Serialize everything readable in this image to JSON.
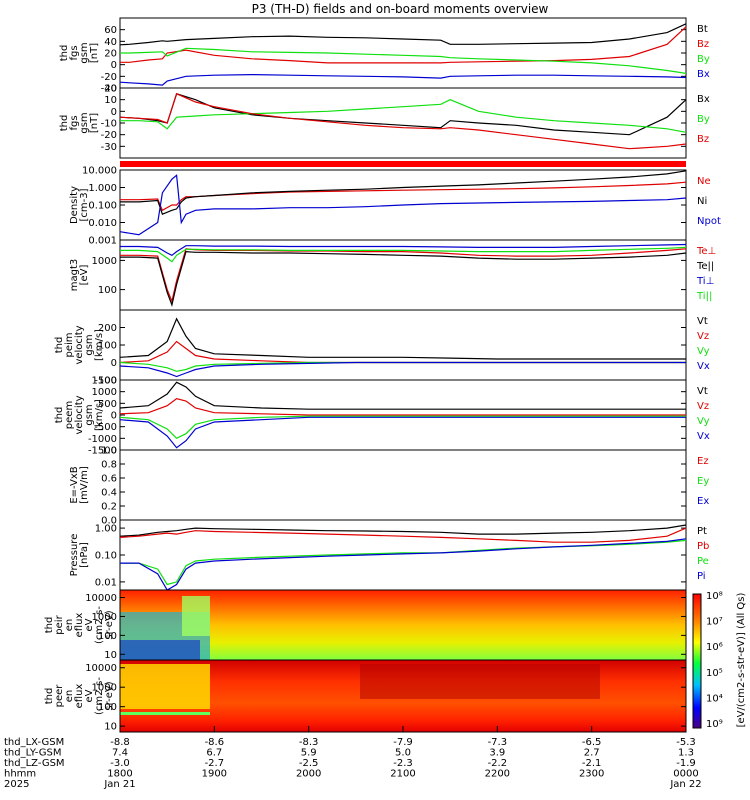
{
  "title": "P3 (TH-D) fields and on-board moments overview",
  "colors": {
    "black": "#000000",
    "red": "#e00000",
    "green": "#10e010",
    "blue": "#0000d0"
  },
  "chart_data": [
    {
      "id": "fgs_gsm",
      "type": "line",
      "ylabel": [
        "thd",
        "fgs",
        "gsm",
        "[nT]"
      ],
      "ylim": [
        -40,
        80
      ],
      "yticks": [
        "-40",
        "-20",
        "0",
        "20",
        "40",
        "60"
      ],
      "yticks_values": [
        -40,
        -20,
        0,
        20,
        40,
        60
      ],
      "x": [
        18.0,
        18.1,
        18.3,
        18.45,
        18.5,
        18.7,
        19.0,
        19.4,
        19.8,
        20.2,
        20.6,
        21.0,
        21.4,
        21.5,
        21.8,
        22.2,
        22.6,
        23.0,
        23.4,
        23.8,
        24.0
      ],
      "series": [
        {
          "name": "Bt",
          "color": "#000000",
          "values": [
            34,
            35,
            38,
            41,
            40,
            43,
            45,
            48,
            49,
            47,
            46,
            44,
            42,
            35,
            35,
            36,
            37,
            38,
            44,
            55,
            70
          ]
        },
        {
          "name": "Bz",
          "color": "#e00000",
          "values": [
            4,
            4,
            8,
            10,
            20,
            25,
            16,
            10,
            7,
            3,
            3,
            3,
            3,
            4,
            5,
            6,
            7,
            9,
            14,
            35,
            65
          ]
        },
        {
          "name": "By",
          "color": "#10e010",
          "values": [
            20,
            20,
            21,
            22,
            15,
            28,
            26,
            22,
            21,
            20,
            18,
            16,
            14,
            12,
            10,
            8,
            6,
            3,
            -2,
            -10,
            -15
          ]
        },
        {
          "name": "Bx",
          "color": "#0000d0",
          "values": [
            -30,
            -31,
            -33,
            -35,
            -28,
            -20,
            -18,
            -17,
            -18,
            -19,
            -20,
            -21,
            -23,
            -20,
            -19,
            -18,
            -18,
            -19,
            -20,
            -21,
            -22
          ]
        }
      ]
    },
    {
      "id": "fgs_gse",
      "type": "line",
      "ylabel": [
        "thd",
        "fgs",
        "gsm",
        "[nT]"
      ],
      "ylim": [
        -40,
        20
      ],
      "yticks": [
        "-30",
        "-20",
        "-10",
        "0",
        "10",
        "20"
      ],
      "yticks_values": [
        -30,
        -20,
        -10,
        0,
        10,
        20
      ],
      "x": [
        18.0,
        18.2,
        18.4,
        18.5,
        18.6,
        18.8,
        19.0,
        19.4,
        19.8,
        20.2,
        20.6,
        21.0,
        21.4,
        21.5,
        21.8,
        22.2,
        22.6,
        23.0,
        23.4,
        23.8,
        24.0
      ],
      "series": [
        {
          "name": "Bx",
          "color": "#000000",
          "values": [
            -5,
            -6,
            -8,
            -10,
            15,
            10,
            3,
            -3,
            -6,
            -8,
            -10,
            -12,
            -14,
            -8,
            -10,
            -12,
            -16,
            -18,
            -20,
            -5,
            10
          ]
        },
        {
          "name": "By",
          "color": "#10e010",
          "values": [
            -8,
            -8,
            -9,
            -15,
            -5,
            -4,
            -3,
            -2,
            -1,
            0,
            2,
            4,
            6,
            10,
            0,
            -5,
            -8,
            -10,
            -12,
            -15,
            -18
          ]
        },
        {
          "name": "Bz",
          "color": "#e00000",
          "values": [
            -5,
            -6,
            -7,
            -10,
            15,
            8,
            4,
            -2,
            -6,
            -9,
            -12,
            -14,
            -15,
            -14,
            -16,
            -20,
            -24,
            -28,
            -32,
            -30,
            -28
          ]
        }
      ]
    },
    {
      "id": "density",
      "type": "line",
      "yscale": "log",
      "ylabel": [
        "Density",
        "[cm-3]"
      ],
      "ylim": [
        0.001,
        10
      ],
      "yticks": [
        "0.001",
        "0.010",
        "0.100",
        "1.000",
        "10.000"
      ],
      "yticks_values": [
        0.001,
        0.01,
        0.1,
        1,
        10
      ],
      "x": [
        18.0,
        18.2,
        18.4,
        18.45,
        18.55,
        18.6,
        18.65,
        18.7,
        18.8,
        19.0,
        19.4,
        19.8,
        20.2,
        20.6,
        21.0,
        21.4,
        21.8,
        22.2,
        22.6,
        23.0,
        23.4,
        23.8,
        24.0
      ],
      "series": [
        {
          "name": "Ne",
          "color": "#e00000",
          "values": [
            0.2,
            0.2,
            0.22,
            0.05,
            0.1,
            0.1,
            0.2,
            0.3,
            0.3,
            0.35,
            0.45,
            0.55,
            0.6,
            0.65,
            0.7,
            0.75,
            0.8,
            0.85,
            0.95,
            1.1,
            1.3,
            1.6,
            2.0
          ]
        },
        {
          "name": "Ni",
          "color": "#000000",
          "values": [
            0.15,
            0.15,
            0.18,
            0.03,
            0.05,
            0.06,
            0.15,
            0.25,
            0.3,
            0.35,
            0.5,
            0.6,
            0.7,
            0.8,
            1.0,
            1.2,
            1.4,
            1.8,
            2.3,
            3.0,
            4.0,
            6.0,
            9.0
          ]
        },
        {
          "name": "Npot",
          "color": "#0000d0",
          "values": [
            0.003,
            0.002,
            0.01,
            0.5,
            3.0,
            5.0,
            0.01,
            0.03,
            0.05,
            0.06,
            0.06,
            0.07,
            0.07,
            0.08,
            0.1,
            0.12,
            0.13,
            0.14,
            0.15,
            0.16,
            0.18,
            0.2,
            0.25
          ]
        }
      ]
    },
    {
      "id": "temperature",
      "type": "line",
      "yscale": "log",
      "ylabel": [
        "magt3",
        "[eV]"
      ],
      "ylim": [
        20,
        5000
      ],
      "yticks": [
        "100",
        "1000"
      ],
      "yticks_values": [
        100,
        1000
      ],
      "x": [
        18.0,
        18.2,
        18.4,
        18.5,
        18.55,
        18.6,
        18.7,
        18.8,
        19.0,
        19.4,
        19.8,
        20.2,
        20.6,
        21.0,
        21.4,
        21.8,
        22.2,
        22.6,
        23.0,
        23.4,
        23.8,
        24.0
      ],
      "series": [
        {
          "name": "Te⊥",
          "color": "#e00000",
          "values": [
            1500,
            1500,
            1400,
            100,
            40,
            200,
            2500,
            2300,
            2200,
            2200,
            2100,
            2100,
            2000,
            2000,
            1800,
            1500,
            1400,
            1400,
            1500,
            1800,
            2200,
            2500
          ]
        },
        {
          "name": "Te||",
          "color": "#000000",
          "values": [
            1300,
            1300,
            1200,
            80,
            30,
            150,
            2000,
            1900,
            1900,
            1800,
            1800,
            1700,
            1600,
            1500,
            1400,
            1200,
            1100,
            1100,
            1200,
            1300,
            1500,
            1800
          ]
        },
        {
          "name": "Ti⊥",
          "color": "#0000d0",
          "values": [
            3000,
            3000,
            2800,
            1800,
            1500,
            2000,
            3200,
            3200,
            3100,
            3100,
            3000,
            3000,
            3000,
            3000,
            2900,
            2800,
            2800,
            2800,
            3000,
            3200,
            3400,
            3500
          ]
        },
        {
          "name": "Ti||",
          "color": "#10e010",
          "values": [
            2200,
            2200,
            2000,
            1200,
            900,
            1500,
            2400,
            2400,
            2300,
            2300,
            2200,
            2200,
            2200,
            2200,
            2100,
            2000,
            2000,
            2000,
            2200,
            2400,
            2600,
            2800
          ]
        }
      ]
    },
    {
      "id": "peim_velocity",
      "type": "line",
      "ylabel": [
        "thd",
        "peim",
        "velocity",
        "gsm",
        "[km/s]"
      ],
      "ylim": [
        -100,
        300
      ],
      "yticks": [
        "-100",
        "0",
        "100",
        "200"
      ],
      "yticks_values": [
        -100,
        0,
        100,
        200
      ],
      "x": [
        18.0,
        18.3,
        18.5,
        18.6,
        18.7,
        18.8,
        19.0,
        19.5,
        20.0,
        20.5,
        21.0,
        21.5,
        22.0,
        22.5,
        23.0,
        23.5,
        24.0
      ],
      "series": [
        {
          "name": "Vt",
          "color": "#000000",
          "values": [
            30,
            40,
            120,
            250,
            150,
            80,
            50,
            40,
            30,
            30,
            30,
            25,
            20,
            20,
            20,
            20,
            20
          ]
        },
        {
          "name": "Vz",
          "color": "#e00000",
          "values": [
            0,
            10,
            60,
            120,
            80,
            40,
            20,
            10,
            0,
            0,
            0,
            0,
            0,
            0,
            0,
            0,
            0
          ]
        },
        {
          "name": "Vy",
          "color": "#10e010",
          "values": [
            0,
            -10,
            -30,
            -50,
            -40,
            -20,
            -10,
            -5,
            0,
            0,
            0,
            0,
            0,
            0,
            0,
            0,
            0
          ]
        },
        {
          "name": "Vx",
          "color": "#0000d0",
          "values": [
            -20,
            -30,
            -60,
            -80,
            -60,
            -40,
            -20,
            -10,
            -5,
            0,
            0,
            0,
            0,
            0,
            0,
            0,
            0
          ]
        }
      ]
    },
    {
      "id": "peem_velocity",
      "type": "line",
      "ylabel": [
        "thd",
        "peem",
        "velocity",
        "gsm",
        "[km/s]"
      ],
      "ylim": [
        -1500,
        1500
      ],
      "yticks": [
        "-1500",
        "-1000",
        "-500",
        "0",
        "500",
        "1000",
        "1500"
      ],
      "yticks_values": [
        -1500,
        -1000,
        -500,
        0,
        500,
        1000,
        1500
      ],
      "x": [
        18.0,
        18.3,
        18.5,
        18.6,
        18.7,
        18.8,
        19.0,
        19.5,
        20.0,
        20.5,
        21.0,
        21.5,
        22.0,
        22.5,
        23.0,
        23.5,
        24.0
      ],
      "series": [
        {
          "name": "Vt",
          "color": "#000000",
          "values": [
            300,
            400,
            900,
            1400,
            1200,
            800,
            400,
            300,
            250,
            250,
            250,
            250,
            250,
            250,
            250,
            250,
            250
          ]
        },
        {
          "name": "Vz",
          "color": "#e00000",
          "values": [
            50,
            100,
            400,
            700,
            600,
            300,
            100,
            50,
            0,
            0,
            0,
            0,
            0,
            0,
            0,
            0,
            0
          ]
        },
        {
          "name": "Vy",
          "color": "#10e010",
          "values": [
            -100,
            -200,
            -600,
            -1000,
            -800,
            -400,
            -200,
            -100,
            -50,
            -50,
            -50,
            -50,
            -50,
            -50,
            -50,
            -50,
            -50
          ]
        },
        {
          "name": "Vx",
          "color": "#0000d0",
          "values": [
            -200,
            -300,
            -900,
            -1400,
            -1100,
            -600,
            -300,
            -200,
            -100,
            -100,
            -100,
            -100,
            -100,
            -100,
            -100,
            -100,
            -100
          ]
        }
      ]
    },
    {
      "id": "efield",
      "type": "line",
      "ylabel": [
        "E=-VxB",
        "[mV/m]"
      ],
      "ylim": [
        0,
        1
      ],
      "yticks": [
        "0.0",
        "0.2",
        "0.4",
        "0.6",
        "0.8",
        "1.0"
      ],
      "yticks_values": [
        0,
        0.2,
        0.4,
        0.6,
        0.8,
        1.0
      ],
      "x": [],
      "series": [
        {
          "name": "Ez",
          "color": "#e00000",
          "values": []
        },
        {
          "name": "Ey",
          "color": "#10e010",
          "values": []
        },
        {
          "name": "Ex",
          "color": "#0000d0",
          "values": []
        }
      ]
    },
    {
      "id": "pressure",
      "type": "line",
      "yscale": "log",
      "ylabel": [
        "Pressure",
        "[nPa]"
      ],
      "ylim": [
        0.005,
        2
      ],
      "yticks": [
        "0.01",
        "0.10",
        "1.00"
      ],
      "yticks_values": [
        0.01,
        0.1,
        1.0
      ],
      "x": [
        18.0,
        18.2,
        18.4,
        18.5,
        18.6,
        18.7,
        18.8,
        19.0,
        19.4,
        19.8,
        20.2,
        20.6,
        21.0,
        21.4,
        21.8,
        22.2,
        22.6,
        23.0,
        23.4,
        23.8,
        24.0
      ],
      "series": [
        {
          "name": "Pt",
          "color": "#000000",
          "values": [
            0.5,
            0.55,
            0.7,
            0.75,
            0.8,
            0.9,
            1.0,
            0.95,
            0.9,
            0.85,
            0.8,
            0.78,
            0.75,
            0.7,
            0.6,
            0.6,
            0.65,
            0.7,
            0.8,
            1.0,
            1.3
          ]
        },
        {
          "name": "Pb",
          "color": "#e00000",
          "values": [
            0.45,
            0.5,
            0.6,
            0.65,
            0.6,
            0.7,
            0.8,
            0.75,
            0.7,
            0.65,
            0.6,
            0.55,
            0.5,
            0.45,
            0.4,
            0.35,
            0.3,
            0.3,
            0.35,
            0.5,
            1.0
          ]
        },
        {
          "name": "Pe",
          "color": "#10e010",
          "values": [
            0.05,
            0.05,
            0.03,
            0.008,
            0.01,
            0.04,
            0.06,
            0.07,
            0.08,
            0.09,
            0.1,
            0.11,
            0.12,
            0.12,
            0.15,
            0.18,
            0.2,
            0.22,
            0.25,
            0.3,
            0.35
          ]
        },
        {
          "name": "Pi",
          "color": "#0000d0",
          "values": [
            0.05,
            0.05,
            0.02,
            0.004,
            0.008,
            0.03,
            0.05,
            0.06,
            0.07,
            0.08,
            0.09,
            0.1,
            0.11,
            0.12,
            0.14,
            0.17,
            0.2,
            0.23,
            0.27,
            0.32,
            0.4
          ]
        }
      ]
    },
    {
      "id": "peir_spec",
      "type": "heatmap",
      "yscale": "log",
      "ylabel": [
        "thd",
        "peir",
        "en",
        "eflux",
        "eV",
        "(cm2-s-",
        "sr-eV)"
      ],
      "ylim": [
        5,
        25000
      ],
      "yticks": [
        "10",
        "100",
        "1000",
        "10000"
      ],
      "yticks_values": [
        10,
        100,
        1000,
        10000
      ]
    },
    {
      "id": "peer_spec",
      "type": "heatmap",
      "yscale": "log",
      "ylabel": [
        "thd",
        "peer",
        "en",
        "eflux",
        "eV",
        "(cm2-s-",
        "sr-eV)"
      ],
      "ylim": [
        5,
        25000
      ],
      "yticks": [
        "10",
        "100",
        "1000",
        "10000"
      ],
      "yticks_values": [
        10,
        100,
        1000,
        10000
      ]
    }
  ],
  "colorbar": {
    "label": "[eV/(cm2-s-str-eV)] (All Qs)",
    "label_overlap": "[eV/(cm2-s-sr-eV)]",
    "ticks": [
      "10⁹",
      "10⁴",
      "10⁵",
      "10⁶",
      "10⁷",
      "10⁸"
    ]
  },
  "x_axis": {
    "row_labels": [
      "thd_LX-GSM",
      "thd_LY-GSM",
      "thd_LZ-GSM",
      "hhmm",
      "2025"
    ],
    "columns": [
      {
        "lx": "-8.8",
        "ly": "7.4",
        "lz": "-3.0",
        "hhmm": "1800",
        "date": "Jan 21"
      },
      {
        "lx": "-8.6",
        "ly": "6.7",
        "lz": "-2.7",
        "hhmm": "1900",
        "date": ""
      },
      {
        "lx": "-8.3",
        "ly": "5.9",
        "lz": "-2.5",
        "hhmm": "2000",
        "date": ""
      },
      {
        "lx": "-7.9",
        "ly": "5.0",
        "lz": "-2.3",
        "hhmm": "2100",
        "date": ""
      },
      {
        "lx": "-7.3",
        "ly": "3.9",
        "lz": "-2.2",
        "hhmm": "2200",
        "date": ""
      },
      {
        "lx": "-6.5",
        "ly": "2.7",
        "lz": "-2.1",
        "hhmm": "2300",
        "date": ""
      },
      {
        "lx": "-5.3",
        "ly": "1.3",
        "lz": "-1.9",
        "hhmm": "0000",
        "date": "Jan 22"
      }
    ],
    "x_values": [
      18,
      19,
      20,
      21,
      22,
      23,
      24
    ]
  }
}
